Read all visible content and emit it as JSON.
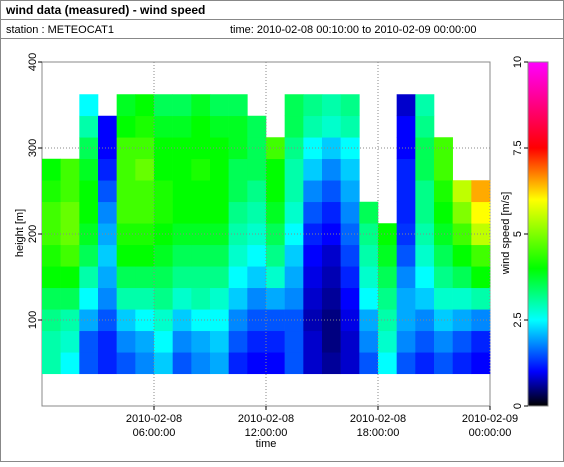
{
  "header": {
    "title": "wind data (measured) - wind speed",
    "station": "station : METEOCAT1",
    "period": "time: 2010-02-08 00:10:00 to 2010-02-09 00:00:00"
  },
  "chart_data": {
    "type": "heatmap",
    "x_label": "time",
    "y_label": "height [m]",
    "color_label": "wind speed [m/s]",
    "x": [
      "2010-02-08 00:30:00",
      "2010-02-08 01:30:00",
      "2010-02-08 02:30:00",
      "2010-02-08 03:30:00",
      "2010-02-08 04:30:00",
      "2010-02-08 05:30:00",
      "2010-02-08 06:30:00",
      "2010-02-08 07:30:00",
      "2010-02-08 08:30:00",
      "2010-02-08 09:30:00",
      "2010-02-08 10:30:00",
      "2010-02-08 11:30:00",
      "2010-02-08 12:30:00",
      "2010-02-08 13:30:00",
      "2010-02-08 14:30:00",
      "2010-02-08 15:30:00",
      "2010-02-08 16:30:00",
      "2010-02-08 17:30:00",
      "2010-02-08 18:30:00",
      "2010-02-08 19:30:00",
      "2010-02-08 20:30:00",
      "2010-02-08 21:30:00",
      "2010-02-08 22:30:00",
      "2010-02-08 23:30:00"
    ],
    "y": [
      50,
      75,
      100,
      125,
      150,
      175,
      200,
      225,
      250,
      275,
      300,
      325,
      350
    ],
    "values": [
      [
        3,
        2.5,
        1.5,
        1.2,
        1.5,
        1.8,
        2.2,
        1.5,
        1.8,
        2,
        1.2,
        1,
        1,
        1.5,
        0.8,
        0.6,
        0.8,
        1.5,
        2.5,
        1.5,
        1.2,
        1.5,
        1.2,
        1
      ],
      [
        3,
        2.8,
        1.5,
        1.2,
        1.8,
        2,
        2.5,
        1.8,
        2,
        2.2,
        1.5,
        1.2,
        1.2,
        1.5,
        0.8,
        0.5,
        0.8,
        1.8,
        2.8,
        1.8,
        1.5,
        1.8,
        1.5,
        1.2
      ],
      [
        3.2,
        3,
        2,
        1.5,
        2.2,
        2.5,
        2.8,
        2.2,
        2.5,
        2.5,
        1.8,
        1.5,
        1.5,
        1.5,
        0.7,
        0.5,
        0.9,
        2,
        3,
        2,
        1.8,
        2.2,
        2,
        1.8
      ],
      [
        3.5,
        3.5,
        2.5,
        1.8,
        3,
        3,
        3.2,
        2.8,
        3,
        2.8,
        2.2,
        1.8,
        2,
        1.8,
        0.8,
        0.6,
        1,
        2.5,
        3.2,
        2,
        2.2,
        2.8,
        2.8,
        3
      ],
      [
        4,
        4,
        3,
        2,
        3.5,
        3.5,
        3.5,
        3.2,
        3.2,
        3.2,
        2.5,
        2.2,
        2.8,
        2,
        0.9,
        0.7,
        1.2,
        2.8,
        3.5,
        1.8,
        2.5,
        3.2,
        3.5,
        4
      ],
      [
        4.2,
        4.5,
        3.5,
        2.2,
        4,
        4,
        3.8,
        3.5,
        3.5,
        3.5,
        2.8,
        2.5,
        3.2,
        2.2,
        1,
        0.8,
        1.4,
        3,
        3.8,
        1.5,
        2.8,
        3.5,
        4,
        4.5
      ],
      [
        4.5,
        4.8,
        3.8,
        2,
        4.2,
        4.2,
        4,
        3.8,
        3.8,
        3.8,
        3,
        2.8,
        3.5,
        2.5,
        1.2,
        1,
        1.6,
        3.2,
        4,
        1.3,
        3,
        3.8,
        4.5,
        5.5
      ],
      [
        4.5,
        4.8,
        4,
        1.8,
        4.5,
        4.5,
        4.2,
        4,
        4,
        4,
        3.2,
        3,
        3.8,
        2.8,
        1.5,
        1.2,
        1.8,
        3.5,
        null,
        1.2,
        3.2,
        4,
        5,
        6
      ],
      [
        4.2,
        4.5,
        4,
        1.5,
        4.5,
        4.5,
        4.2,
        4,
        4,
        4,
        3.5,
        3.2,
        4,
        3,
        1.8,
        1.5,
        2,
        null,
        null,
        1.2,
        3.2,
        4.2,
        5.5,
        6.5
      ],
      [
        4,
        4.5,
        3.8,
        1.2,
        4.5,
        4.8,
        4,
        4,
        4.2,
        4,
        3.5,
        3.5,
        4,
        3,
        2.2,
        1.8,
        2.2,
        null,
        null,
        1.2,
        3.5,
        4.5,
        null,
        null
      ],
      [
        null,
        null,
        3.5,
        1,
        4.5,
        4.5,
        4,
        4,
        4,
        4,
        3.8,
        3.5,
        4.5,
        3.2,
        2.5,
        2.2,
        2.5,
        null,
        null,
        1,
        3.5,
        4.5,
        null,
        null
      ],
      [
        null,
        null,
        3,
        1,
        4,
        4.2,
        3.8,
        3.8,
        4,
        3.8,
        3.8,
        3.5,
        null,
        3.5,
        3,
        2.8,
        3,
        null,
        null,
        1,
        3.2,
        null,
        null,
        null
      ],
      [
        null,
        null,
        2.5,
        null,
        3.8,
        4,
        3.5,
        3.5,
        3.8,
        3.5,
        3.5,
        null,
        null,
        3.5,
        3.2,
        3,
        3.2,
        null,
        null,
        0.8,
        3,
        null,
        null,
        null
      ]
    ],
    "xlim": [
      "2010-02-08 00:00:00",
      "2010-02-09 00:00:00"
    ],
    "xticks": [
      {
        "value": "2010-02-08 06:00:00",
        "label": [
          "2010-02-08",
          "06:00:00"
        ]
      },
      {
        "value": "2010-02-08 12:00:00",
        "label": [
          "2010-02-08",
          "12:00:00"
        ]
      },
      {
        "value": "2010-02-08 18:00:00",
        "label": [
          "2010-02-08",
          "18:00:00"
        ]
      },
      {
        "value": "2010-02-09 00:00:00",
        "label": [
          "2010-02-09",
          "00:00:00"
        ]
      }
    ],
    "ylim": [
      0,
      400
    ],
    "yticks": [
      100,
      200,
      300,
      400
    ],
    "clim": [
      0,
      10
    ],
    "cticks": [
      0,
      2.5,
      5,
      7.5,
      10
    ],
    "colorscale": [
      [
        0,
        "#000000"
      ],
      [
        1,
        "#0000ff"
      ],
      [
        2.5,
        "#00ffff"
      ],
      [
        4,
        "#00ff00"
      ],
      [
        6,
        "#ffff00"
      ],
      [
        7.5,
        "#ff0000"
      ],
      [
        10,
        "#ff00ff"
      ]
    ],
    "grid": true
  }
}
